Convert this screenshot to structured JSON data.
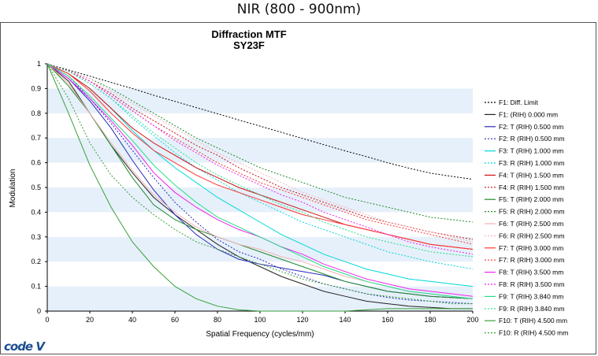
{
  "caption": "NIR (800 - 900nm)",
  "brand": "code V",
  "chart_data": {
    "type": "line",
    "title": "Diffraction MTF",
    "subtitle": "SY23F",
    "xlabel": "Spatial Frequency (cycles/mm)",
    "ylabel": "Modulation",
    "xlim": [
      0,
      200
    ],
    "ylim": [
      0,
      1
    ],
    "xticks": [
      0,
      20,
      40,
      60,
      80,
      100,
      120,
      140,
      160,
      180,
      200
    ],
    "yticks": [
      0,
      0.1,
      0.2,
      0.3,
      0.4,
      0.5,
      0.6,
      0.7,
      0.8,
      0.9,
      1
    ],
    "x": [
      0,
      10,
      20,
      30,
      40,
      50,
      60,
      70,
      80,
      90,
      100,
      110,
      120,
      130,
      140,
      150,
      160,
      170,
      180,
      190,
      200
    ],
    "background_bands": "alternating light-blue horizontal bands",
    "legend_position": "right",
    "series": [
      {
        "name": "F1: Diff. Limit",
        "color": "#000000",
        "dash": true,
        "values": [
          1,
          0.975,
          0.95,
          0.925,
          0.9,
          0.873,
          0.848,
          0.823,
          0.798,
          0.773,
          0.748,
          0.723,
          0.698,
          0.673,
          0.648,
          0.625,
          0.6,
          0.578,
          0.558,
          0.545,
          0.533
        ]
      },
      {
        "name": "F1: (RIH) 0.000 mm",
        "color": "#222222",
        "dash": false,
        "values": [
          1,
          0.93,
          0.8,
          0.67,
          0.56,
          0.46,
          0.39,
          0.33,
          0.27,
          0.22,
          0.18,
          0.14,
          0.11,
          0.08,
          0.06,
          0.04,
          0.03,
          0.02,
          0.015,
          0.01,
          0.01
        ]
      },
      {
        "name": "F2: T (RIH) 0.500 mm",
        "color": "#2a2ab8",
        "dash": false,
        "values": [
          1,
          0.94,
          0.85,
          0.74,
          0.61,
          0.49,
          0.39,
          0.31,
          0.25,
          0.21,
          0.19,
          0.175,
          0.16,
          0.145,
          0.12,
          0.1,
          0.08,
          0.07,
          0.06,
          0.055,
          0.05
        ]
      },
      {
        "name": "F2: R (RIH) 0.500 mm",
        "color": "#2a2ab8",
        "dash": true,
        "values": [
          1,
          0.95,
          0.86,
          0.76,
          0.65,
          0.54,
          0.44,
          0.36,
          0.29,
          0.24,
          0.21,
          0.17,
          0.14,
          0.11,
          0.09,
          0.07,
          0.055,
          0.045,
          0.04,
          0.035,
          0.03
        ]
      },
      {
        "name": "F3: T (RIH) 1.000 mm",
        "color": "#00d8d8",
        "dash": false,
        "values": [
          1,
          0.96,
          0.9,
          0.82,
          0.73,
          0.65,
          0.58,
          0.52,
          0.46,
          0.41,
          0.36,
          0.31,
          0.27,
          0.23,
          0.2,
          0.17,
          0.15,
          0.13,
          0.12,
          0.11,
          0.1
        ]
      },
      {
        "name": "F3: R (RIH) 1.000 mm",
        "color": "#00d8d8",
        "dash": true,
        "values": [
          1,
          0.97,
          0.92,
          0.86,
          0.78,
          0.71,
          0.64,
          0.58,
          0.53,
          0.48,
          0.44,
          0.4,
          0.36,
          0.33,
          0.3,
          0.27,
          0.24,
          0.22,
          0.2,
          0.185,
          0.17
        ]
      },
      {
        "name": "F4: T (RIH) 1.500 mm",
        "color": "#cc1111",
        "dash": false,
        "values": [
          1,
          0.96,
          0.9,
          0.82,
          0.74,
          0.68,
          0.63,
          0.58,
          0.54,
          0.5,
          0.47,
          0.44,
          0.41,
          0.38,
          0.35,
          0.33,
          0.31,
          0.29,
          0.27,
          0.26,
          0.25
        ]
      },
      {
        "name": "F4: R (RIH) 1.500 mm",
        "color": "#cc1111",
        "dash": true,
        "values": [
          1,
          0.97,
          0.93,
          0.88,
          0.82,
          0.77,
          0.72,
          0.67,
          0.63,
          0.58,
          0.54,
          0.5,
          0.47,
          0.44,
          0.41,
          0.38,
          0.36,
          0.34,
          0.32,
          0.305,
          0.29
        ]
      },
      {
        "name": "F5: T (RIH) 2.000 mm",
        "color": "#1e8b2a",
        "dash": false,
        "values": [
          1,
          0.91,
          0.8,
          0.67,
          0.54,
          0.43,
          0.37,
          0.33,
          0.3,
          0.27,
          0.24,
          0.21,
          0.18,
          0.15,
          0.12,
          0.1,
          0.08,
          0.07,
          0.06,
          0.055,
          0.05
        ]
      },
      {
        "name": "F5: R (RIH) 2.000 mm",
        "color": "#1e8b2a",
        "dash": true,
        "values": [
          1,
          0.97,
          0.94,
          0.9,
          0.85,
          0.8,
          0.75,
          0.7,
          0.66,
          0.62,
          0.58,
          0.55,
          0.52,
          0.49,
          0.46,
          0.44,
          0.42,
          0.4,
          0.38,
          0.37,
          0.36
        ]
      },
      {
        "name": "F6: T (RIH) 2.500 mm",
        "color": "#f3b3b8",
        "dash": false,
        "values": [
          1,
          0.92,
          0.8,
          0.68,
          0.57,
          0.47,
          0.4,
          0.34,
          0.3,
          0.27,
          0.25,
          0.22,
          0.2,
          0.17,
          0.14,
          0.12,
          0.1,
          0.08,
          0.07,
          0.06,
          0.05
        ]
      },
      {
        "name": "F6: R (RIH) 2.500 mm",
        "color": "#f3b3b8",
        "dash": true,
        "values": [
          1,
          0.97,
          0.94,
          0.89,
          0.84,
          0.79,
          0.74,
          0.69,
          0.64,
          0.6,
          0.56,
          0.52,
          0.48,
          0.45,
          0.42,
          0.39,
          0.36,
          0.34,
          0.32,
          0.3,
          0.28
        ]
      },
      {
        "name": "F7: T (RIH) 3.000 mm",
        "color": "#ff3333",
        "dash": false,
        "values": [
          1,
          0.96,
          0.89,
          0.8,
          0.72,
          0.65,
          0.6,
          0.55,
          0.51,
          0.48,
          0.45,
          0.42,
          0.39,
          0.37,
          0.35,
          0.33,
          0.31,
          0.29,
          0.27,
          0.26,
          0.25
        ]
      },
      {
        "name": "F7: R (RIH) 3.000 mm",
        "color": "#ff3333",
        "dash": true,
        "values": [
          1,
          0.97,
          0.93,
          0.87,
          0.81,
          0.75,
          0.7,
          0.65,
          0.6,
          0.56,
          0.52,
          0.49,
          0.46,
          0.43,
          0.4,
          0.37,
          0.35,
          0.33,
          0.31,
          0.29,
          0.27
        ]
      },
      {
        "name": "F8: T (RIH) 3.500 mm",
        "color": "#ee22ee",
        "dash": false,
        "values": [
          1,
          0.94,
          0.86,
          0.77,
          0.67,
          0.56,
          0.48,
          0.42,
          0.37,
          0.33,
          0.3,
          0.26,
          0.23,
          0.19,
          0.16,
          0.13,
          0.11,
          0.09,
          0.08,
          0.07,
          0.06
        ]
      },
      {
        "name": "F8: R (RIH) 3.500 mm",
        "color": "#ee22ee",
        "dash": true,
        "values": [
          1,
          0.97,
          0.93,
          0.87,
          0.81,
          0.75,
          0.69,
          0.64,
          0.59,
          0.55,
          0.51,
          0.47,
          0.44,
          0.4,
          0.37,
          0.34,
          0.31,
          0.28,
          0.26,
          0.245,
          0.23
        ]
      },
      {
        "name": "F9: T (RIH) 3.840 mm",
        "color": "#22dd88",
        "dash": false,
        "values": [
          1,
          0.95,
          0.87,
          0.78,
          0.69,
          0.59,
          0.51,
          0.44,
          0.38,
          0.34,
          0.3,
          0.26,
          0.22,
          0.18,
          0.15,
          0.12,
          0.1,
          0.08,
          0.07,
          0.06,
          0.05
        ]
      },
      {
        "name": "F9: R (RIH) 3.840 mm",
        "color": "#22dd88",
        "dash": true,
        "values": [
          1,
          0.97,
          0.92,
          0.86,
          0.79,
          0.72,
          0.66,
          0.6,
          0.55,
          0.51,
          0.47,
          0.43,
          0.4,
          0.36,
          0.33,
          0.3,
          0.28,
          0.26,
          0.24,
          0.23,
          0.22
        ]
      },
      {
        "name": "F10: T (RIH) 4.500 mm",
        "color": "#3aa03a",
        "dash": false,
        "values": [
          1,
          0.8,
          0.59,
          0.42,
          0.28,
          0.18,
          0.1,
          0.05,
          0.02,
          0.005,
          0,
          0,
          0,
          0,
          0,
          0.005,
          0.01,
          0.01,
          0.01,
          0.01,
          0.01
        ]
      },
      {
        "name": "F10: R (RIH) 4.500 mm",
        "color": "#3aa03a",
        "dash": true,
        "values": [
          1,
          0.86,
          0.68,
          0.55,
          0.46,
          0.39,
          0.33,
          0.28,
          0.25,
          0.22,
          0.19,
          0.16,
          0.13,
          0.11,
          0.09,
          0.07,
          0.06,
          0.05,
          0.04,
          0.03,
          0.03
        ]
      }
    ]
  }
}
